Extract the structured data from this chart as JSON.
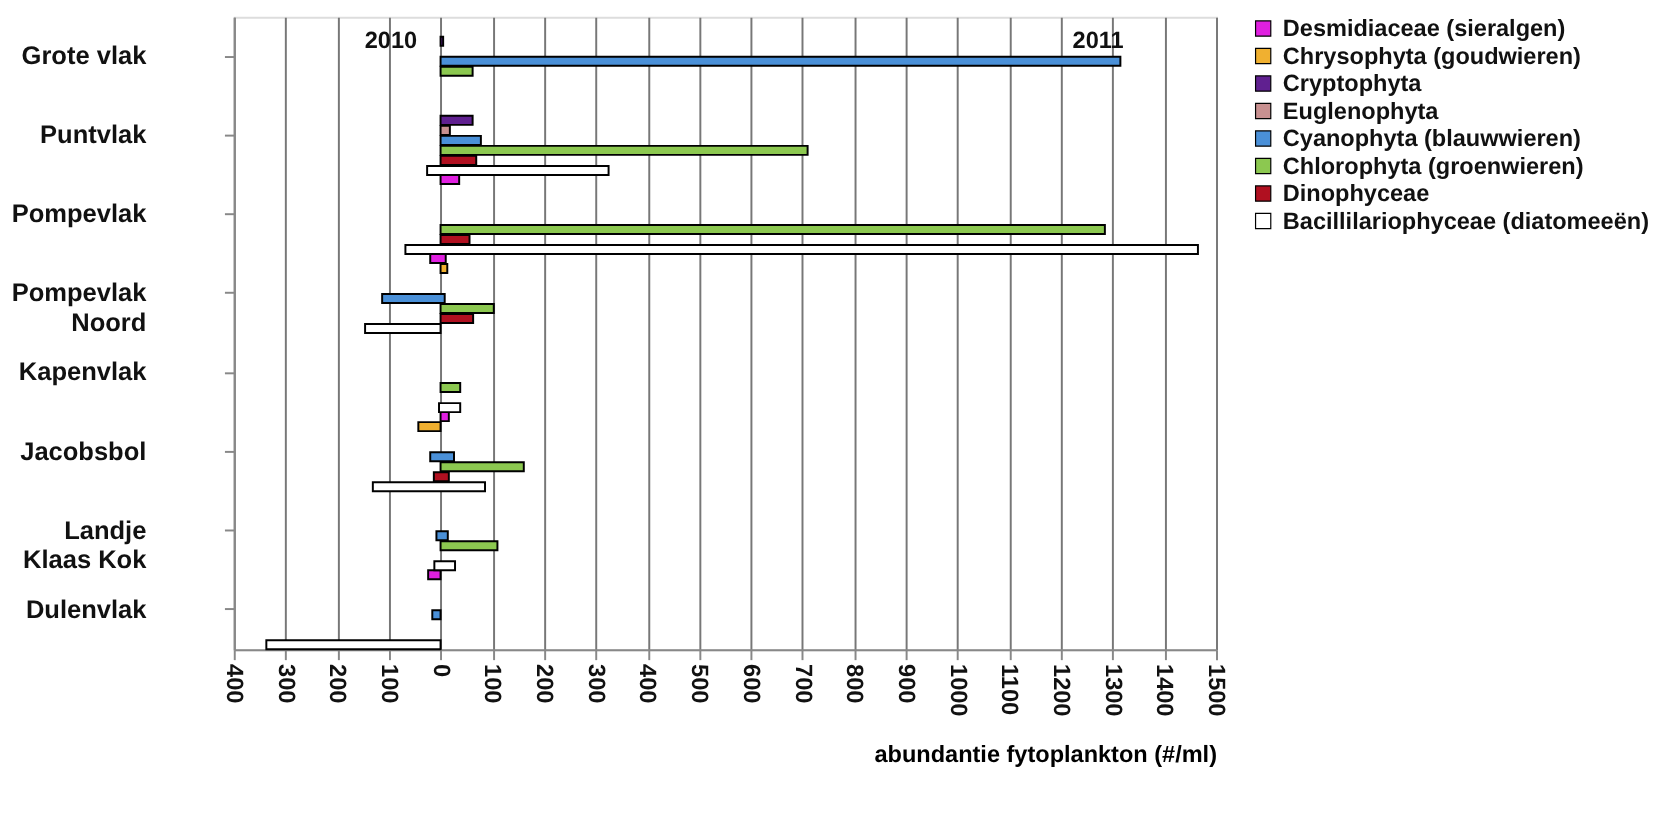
{
  "chart_data": {
    "type": "bar",
    "orientation": "horizontal",
    "xlabel": "abundantie fytoplankton  (#/ml)",
    "categories": [
      "Grote vlak",
      "Puntvlak",
      "Pompevlak",
      "Pompevlak Noord",
      "Kapenvlak",
      "Jacobsbol",
      "Landje Klaas Kok",
      "Dulenvlak"
    ],
    "series": [
      {
        "name": "Desmidiaceae (sieralgen)",
        "color": "#e020e0",
        "base": [
          null,
          null,
          0,
          -20,
          null,
          0,
          null,
          -24
        ],
        "values": [
          null,
          null,
          36,
          30,
          null,
          16,
          null,
          24
        ]
      },
      {
        "name": "Chrysophyta (goudwieren)",
        "color": "#f0b030",
        "base": [
          null,
          null,
          null,
          0,
          null,
          -43,
          null,
          null
        ],
        "values": [
          null,
          null,
          null,
          13,
          null,
          43,
          null,
          null
        ]
      },
      {
        "name": "Cryptophyta",
        "color": "#602090",
        "base": [
          0,
          0,
          null,
          null,
          null,
          null,
          null,
          null
        ],
        "values": [
          5,
          62,
          null,
          null,
          null,
          null,
          null,
          null
        ]
      },
      {
        "name": "Euglenophyta",
        "color": "#c89090",
        "base": [
          null,
          0,
          null,
          null,
          null,
          null,
          null,
          null
        ],
        "values": [
          null,
          18,
          null,
          null,
          null,
          null,
          null,
          null
        ]
      },
      {
        "name": "Cyanophyta (blauwwieren)",
        "color": "#4a90d8",
        "base": [
          0,
          0,
          null,
          -113,
          null,
          -20,
          -8,
          -16
        ],
        "values": [
          1315,
          78,
          null,
          121,
          null,
          46,
          22,
          16
        ]
      },
      {
        "name": "Chlorophyta (groenwieren)",
        "color": "#8cc850",
        "base": [
          0,
          0,
          0,
          0,
          0,
          0,
          0,
          null
        ],
        "values": [
          62,
          710,
          1285,
          103,
          38,
          161,
          110,
          null
        ]
      },
      {
        "name": "Dinophyceae",
        "color": "#b01020",
        "base": [
          null,
          0,
          0,
          0,
          null,
          -13,
          null,
          null
        ],
        "values": [
          null,
          69,
          56,
          63,
          null,
          29,
          null,
          null
        ]
      },
      {
        "name": "Bacillilariophyceae (diatomeeën)",
        "color": "#ffffff",
        "base": [
          null,
          -26,
          -68,
          -146,
          -3,
          -131,
          -12,
          -337
        ],
        "values": [
          null,
          351,
          1533,
          146,
          41,
          217,
          40,
          337
        ]
      }
    ],
    "xlim": [
      -400,
      1500
    ],
    "xticks": [
      {
        "value": -400,
        "label": "400"
      },
      {
        "value": -300,
        "label": "300"
      },
      {
        "value": -200,
        "label": "200"
      },
      {
        "value": -100,
        "label": "100"
      },
      0,
      100,
      200,
      300,
      400,
      500,
      600,
      700,
      800,
      900,
      1000,
      1100,
      1200,
      1300,
      1400,
      1500
    ],
    "annotations": [
      "2010",
      "2011"
    ],
    "grid": "x",
    "legend": "top right"
  }
}
